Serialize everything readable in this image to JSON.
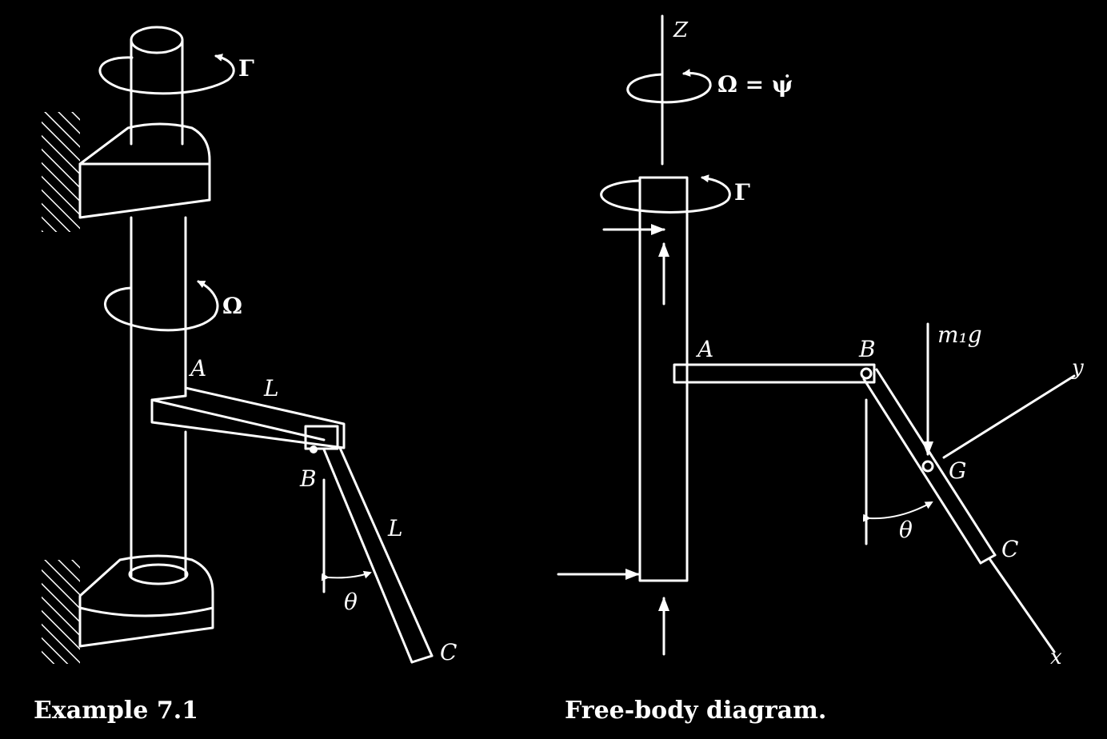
{
  "left_figure": {
    "caption": "Example 7.1",
    "labels": {
      "torque": "Γ",
      "spin": "Ω",
      "point_a": "A",
      "point_b": "B",
      "point_c": "C",
      "length_ab": "L",
      "length_bc": "L",
      "angle": "θ"
    }
  },
  "right_figure": {
    "caption": "Free-body diagram.",
    "labels": {
      "axis_z": "Z",
      "spin_relation": "Ω = ψ̇",
      "torque": "Γ",
      "point_a": "A",
      "point_b": "B",
      "point_c": "C",
      "point_g": "G",
      "weight": "m₁g",
      "axis_x": "x",
      "axis_y": "y",
      "angle": "θ"
    }
  }
}
